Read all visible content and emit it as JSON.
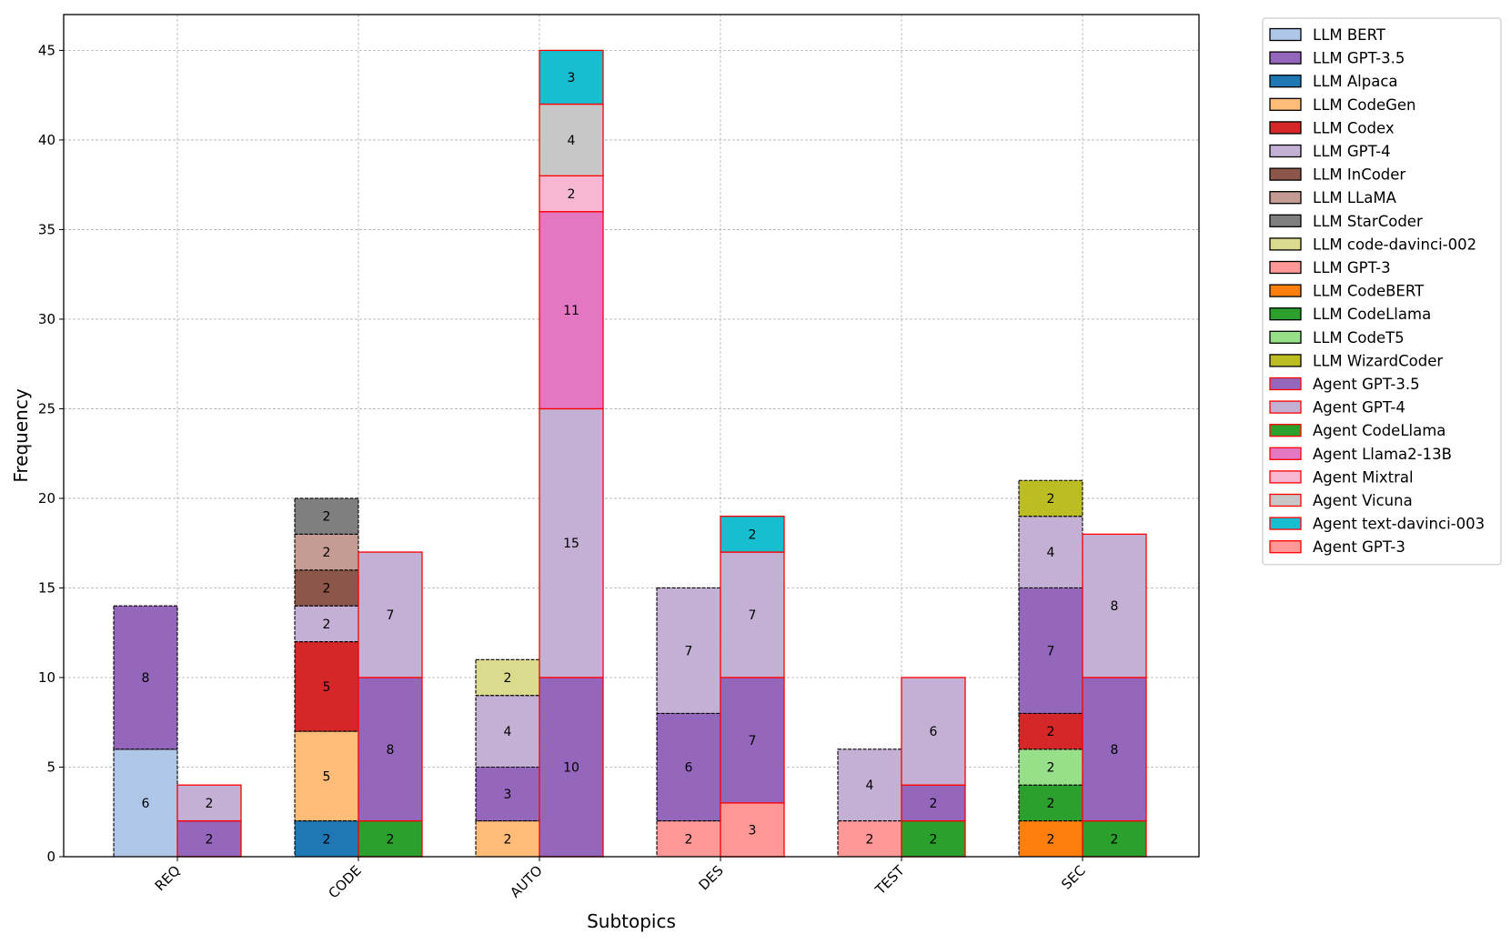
{
  "chart_data": {
    "type": "bar",
    "stacked": true,
    "grouped": true,
    "title": "",
    "xlabel": "Subtopics",
    "ylabel": "Frequency",
    "ylim": [
      0,
      47
    ],
    "yticks": [
      0,
      5,
      10,
      15,
      20,
      25,
      30,
      35,
      40,
      45
    ],
    "grid": true,
    "legend_position": "outside-top-right",
    "categories": [
      "REQ",
      "CODE",
      "AUTO",
      "DES",
      "TEST",
      "SEC"
    ],
    "legend": [
      {
        "name": "LLM BERT",
        "color": "#aec7e8",
        "edge": "#000000"
      },
      {
        "name": "LLM GPT-3.5",
        "color": "#9467bd",
        "edge": "#000000"
      },
      {
        "name": "LLM Alpaca",
        "color": "#1f77b4",
        "edge": "#000000"
      },
      {
        "name": "LLM CodeGen",
        "color": "#ffbb78",
        "edge": "#000000"
      },
      {
        "name": "LLM Codex",
        "color": "#d62728",
        "edge": "#000000"
      },
      {
        "name": "LLM GPT-4",
        "color": "#c5b0d5",
        "edge": "#000000"
      },
      {
        "name": "LLM InCoder",
        "color": "#8c564b",
        "edge": "#000000"
      },
      {
        "name": "LLM LLaMA",
        "color": "#c49c94",
        "edge": "#000000"
      },
      {
        "name": "LLM StarCoder",
        "color": "#7f7f7f",
        "edge": "#000000"
      },
      {
        "name": "LLM code-davinci-002",
        "color": "#dbdb8d",
        "edge": "#000000"
      },
      {
        "name": "LLM GPT-3",
        "color": "#ff9896",
        "edge": "#000000"
      },
      {
        "name": "LLM CodeBERT",
        "color": "#ff7f0e",
        "edge": "#000000"
      },
      {
        "name": "LLM CodeLlama",
        "color": "#2ca02c",
        "edge": "#000000"
      },
      {
        "name": "LLM CodeT5",
        "color": "#98df8a",
        "edge": "#000000"
      },
      {
        "name": "LLM WizardCoder",
        "color": "#bcbd22",
        "edge": "#000000"
      },
      {
        "name": "Agent GPT-3.5",
        "color": "#9467bd",
        "edge": "#ff0000"
      },
      {
        "name": "Agent GPT-4",
        "color": "#c5b0d5",
        "edge": "#ff0000"
      },
      {
        "name": "Agent CodeLlama",
        "color": "#2ca02c",
        "edge": "#ff0000"
      },
      {
        "name": "Agent Llama2-13B",
        "color": "#e377c2",
        "edge": "#ff0000"
      },
      {
        "name": "Agent Mixtral",
        "color": "#f7b6d2",
        "edge": "#ff0000"
      },
      {
        "name": "Agent Vicuna",
        "color": "#c7c7c7",
        "edge": "#ff0000"
      },
      {
        "name": "Agent text-davinci-003",
        "color": "#17becf",
        "edge": "#ff0000"
      },
      {
        "name": "Agent GPT-3",
        "color": "#ff9896",
        "edge": "#ff0000"
      }
    ],
    "stacks": [
      {
        "category": "REQ",
        "group": "LLM",
        "segments": [
          {
            "series": "LLM BERT",
            "value": 6
          },
          {
            "series": "LLM GPT-3.5",
            "value": 8
          }
        ]
      },
      {
        "category": "REQ",
        "group": "Agent",
        "segments": [
          {
            "series": "Agent GPT-3.5",
            "value": 2
          },
          {
            "series": "Agent GPT-4",
            "value": 2
          }
        ]
      },
      {
        "category": "CODE",
        "group": "LLM",
        "segments": [
          {
            "series": "LLM Alpaca",
            "value": 2
          },
          {
            "series": "LLM CodeGen",
            "value": 5
          },
          {
            "series": "LLM Codex",
            "value": 5
          },
          {
            "series": "LLM GPT-4",
            "value": 2
          },
          {
            "series": "LLM InCoder",
            "value": 2
          },
          {
            "series": "LLM LLaMA",
            "value": 2
          },
          {
            "series": "LLM StarCoder",
            "value": 2
          }
        ]
      },
      {
        "category": "CODE",
        "group": "Agent",
        "segments": [
          {
            "series": "Agent CodeLlama",
            "value": 2
          },
          {
            "series": "Agent GPT-3.5",
            "value": 8
          },
          {
            "series": "Agent GPT-4",
            "value": 7
          }
        ]
      },
      {
        "category": "AUTO",
        "group": "LLM",
        "segments": [
          {
            "series": "LLM CodeGen",
            "value": 2
          },
          {
            "series": "LLM GPT-3.5",
            "value": 3
          },
          {
            "series": "LLM GPT-4",
            "value": 4
          },
          {
            "series": "LLM code-davinci-002",
            "value": 2
          }
        ]
      },
      {
        "category": "AUTO",
        "group": "Agent",
        "segments": [
          {
            "series": "Agent GPT-3.5",
            "value": 10
          },
          {
            "series": "Agent GPT-4",
            "value": 15
          },
          {
            "series": "Agent Llama2-13B",
            "value": 11
          },
          {
            "series": "Agent Mixtral",
            "value": 2
          },
          {
            "series": "Agent Vicuna",
            "value": 4
          },
          {
            "series": "Agent text-davinci-003",
            "value": 3
          }
        ]
      },
      {
        "category": "DES",
        "group": "LLM",
        "segments": [
          {
            "series": "LLM GPT-3",
            "value": 2
          },
          {
            "series": "LLM GPT-3.5",
            "value": 6
          },
          {
            "series": "LLM GPT-4",
            "value": 7
          }
        ]
      },
      {
        "category": "DES",
        "group": "Agent",
        "segments": [
          {
            "series": "Agent GPT-3",
            "value": 3
          },
          {
            "series": "Agent GPT-3.5",
            "value": 7
          },
          {
            "series": "Agent GPT-4",
            "value": 7
          },
          {
            "series": "Agent text-davinci-003",
            "value": 2
          }
        ]
      },
      {
        "category": "TEST",
        "group": "LLM",
        "segments": [
          {
            "series": "LLM GPT-3",
            "value": 2
          },
          {
            "series": "LLM GPT-4",
            "value": 4
          }
        ]
      },
      {
        "category": "TEST",
        "group": "Agent",
        "segments": [
          {
            "series": "Agent CodeLlama",
            "value": 2
          },
          {
            "series": "Agent GPT-3.5",
            "value": 2
          },
          {
            "series": "Agent GPT-4",
            "value": 6
          }
        ]
      },
      {
        "category": "SEC",
        "group": "LLM",
        "segments": [
          {
            "series": "LLM CodeBERT",
            "value": 2
          },
          {
            "series": "LLM CodeLlama",
            "value": 2
          },
          {
            "series": "LLM CodeT5",
            "value": 2
          },
          {
            "series": "LLM Codex",
            "value": 2
          },
          {
            "series": "LLM GPT-3.5",
            "value": 7
          },
          {
            "series": "LLM GPT-4",
            "value": 4
          },
          {
            "series": "LLM WizardCoder",
            "value": 2
          }
        ]
      },
      {
        "category": "SEC",
        "group": "Agent",
        "segments": [
          {
            "series": "Agent CodeLlama",
            "value": 2
          },
          {
            "series": "Agent GPT-3.5",
            "value": 8
          },
          {
            "series": "Agent GPT-4",
            "value": 8
          }
        ]
      }
    ]
  }
}
